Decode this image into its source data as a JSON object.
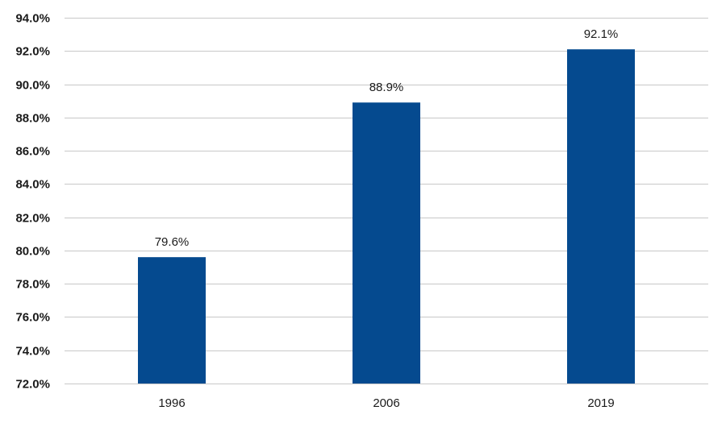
{
  "chart_data": {
    "type": "bar",
    "categories": [
      "1996",
      "2006",
      "2019"
    ],
    "values": [
      79.6,
      88.9,
      92.1
    ],
    "data_labels": [
      "79.6%",
      "88.9%",
      "92.1%"
    ],
    "ylim": [
      72,
      94
    ],
    "y_ticks": [
      72,
      74,
      76,
      78,
      80,
      82,
      84,
      86,
      88,
      90,
      92,
      94
    ],
    "y_tick_labels": [
      "72.0%",
      "74.0%",
      "76.0%",
      "78.0%",
      "80.0%",
      "82.0%",
      "84.0%",
      "86.0%",
      "88.0%",
      "90.0%",
      "92.0%",
      "94.0%"
    ],
    "grid": true,
    "legend": "none",
    "bar_color": "#054a8f",
    "grid_color": "#c8c8c8"
  }
}
